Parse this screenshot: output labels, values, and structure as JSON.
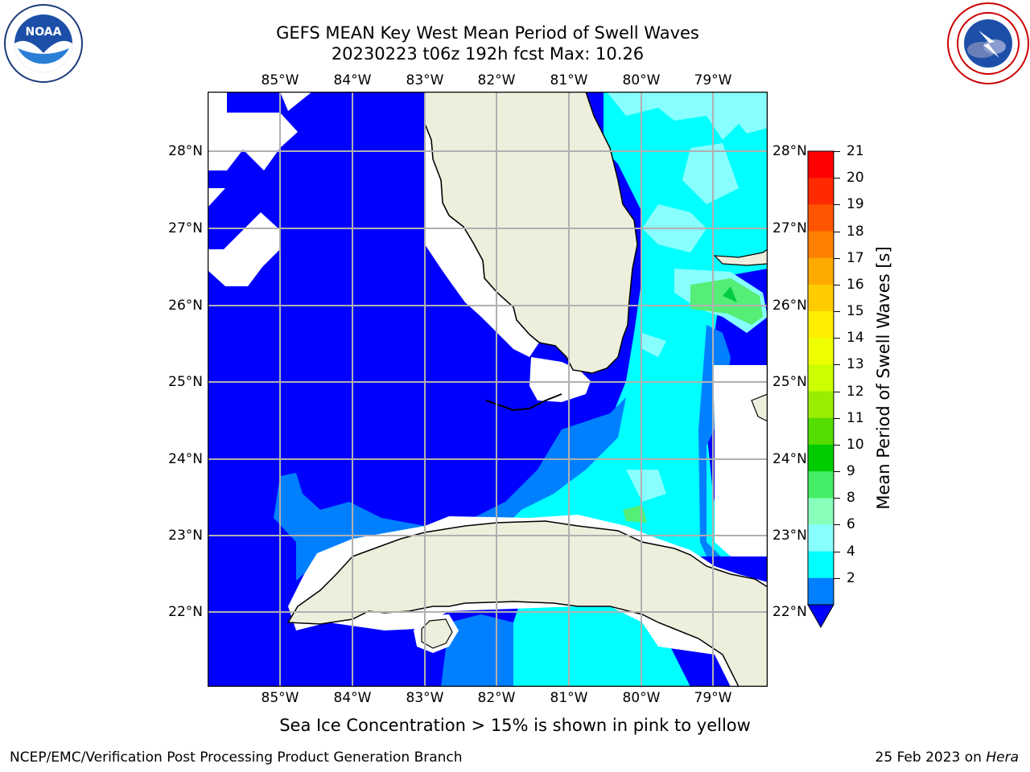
{
  "title": {
    "line1": "GEFS MEAN Key West Mean Period of Swell Waves",
    "line2": "20230223 t06z 192h fcst   Max: 10.26"
  },
  "logos": {
    "left": {
      "text": "NOAA",
      "ring_text": "NATIONAL OCEANIC AND ATMOSPHERIC ADMINISTRATION · U.S. DEPARTMENT OF COMMERCE"
    },
    "right": {
      "ring_text": "NATIONAL WEATHER SERVICE"
    }
  },
  "map": {
    "lon_labels": [
      "85°W",
      "84°W",
      "83°W",
      "82°W",
      "81°W",
      "80°W",
      "79°W"
    ],
    "lat_labels": [
      "28°N",
      "27°N",
      "26°N",
      "25°N",
      "24°N",
      "23°N",
      "22°N"
    ],
    "extent": {
      "lon_min": -86.0,
      "lon_max": -78.25,
      "lat_min": 21.05,
      "lat_max": 28.78
    },
    "colors": {
      "land": "#eeeedd",
      "ocean_low": "#0000ff",
      "ocean_mid": "#0080ff",
      "ocean_cyan": "#00ffff",
      "ocean_light": "#80ffff",
      "ocean_green": "#55ee77",
      "grid": "#b0b0b0"
    }
  },
  "colorbar": {
    "label": "Mean Period of Swell Waves [s]",
    "ticks": [
      "21",
      "20",
      "19",
      "18",
      "17",
      "16",
      "15",
      "14",
      "13",
      "12",
      "11",
      "10",
      "9",
      "8",
      "6",
      "4",
      "2"
    ],
    "colors": [
      "#ff0000",
      "#ff2a00",
      "#ff5500",
      "#ff8000",
      "#ffaa00",
      "#ffcc00",
      "#ffee00",
      "#eeff00",
      "#ccff00",
      "#99ee00",
      "#55dd00",
      "#00cc00",
      "#44ee66",
      "#88ffbb",
      "#88ffff",
      "#00ffff",
      "#0080ff"
    ],
    "extend_color": "#0000ff"
  },
  "footer": {
    "caption": "Sea Ice Concentration > 15% is shown in pink to yellow",
    "left": "NCEP/EMC/Verification Post Processing Product Generation Branch",
    "right_date": "25 Feb 2023 on ",
    "right_host": "Hera"
  }
}
